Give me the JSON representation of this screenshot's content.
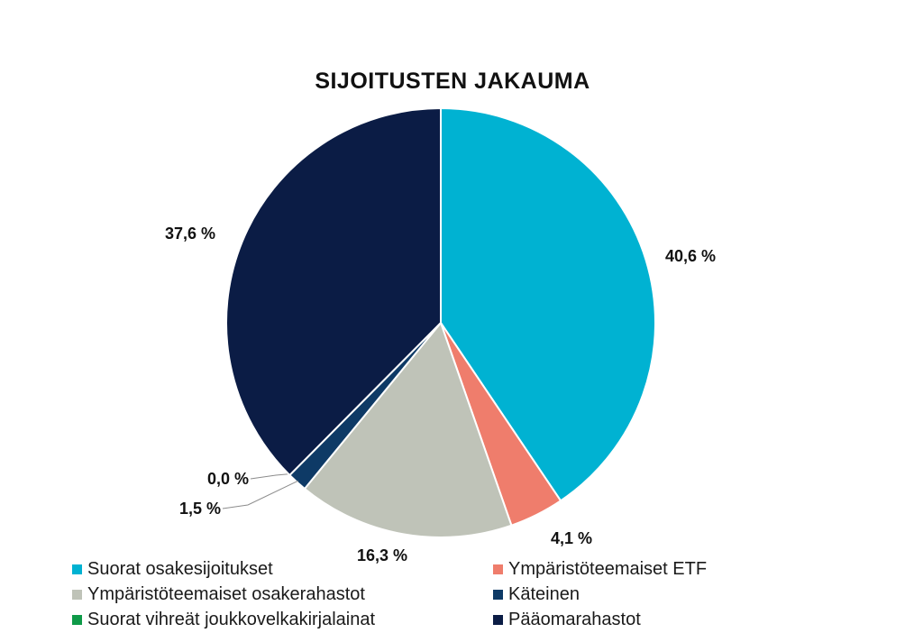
{
  "chart_data": {
    "type": "pie",
    "title": "SIJOITUSTEN JAKAUMA",
    "legend_position": "bottom",
    "slices": [
      {
        "name": "Suorat osakesijoitukset",
        "value": 40.6,
        "label": "40,6 %",
        "color": "#00b2d2"
      },
      {
        "name": "Ympäristöteemaiset ETF",
        "value": 4.1,
        "label": "4,1 %",
        "color": "#ef7d6c"
      },
      {
        "name": "Ympäristöteemaiset osakerahastot",
        "value": 16.3,
        "label": "16,3 %",
        "color": "#bfc3b8"
      },
      {
        "name": "Käteinen",
        "value": 1.5,
        "label": "1,5 %",
        "color": "#0e3a66"
      },
      {
        "name": "Suorat vihreät joukkovelkakirjalainat",
        "value": 0.0,
        "label": "0,0 %",
        "color": "#0e9a48"
      },
      {
        "name": "Pääomarahastot",
        "value": 37.6,
        "label": "37,6 %",
        "color": "#0b1c45"
      }
    ]
  }
}
